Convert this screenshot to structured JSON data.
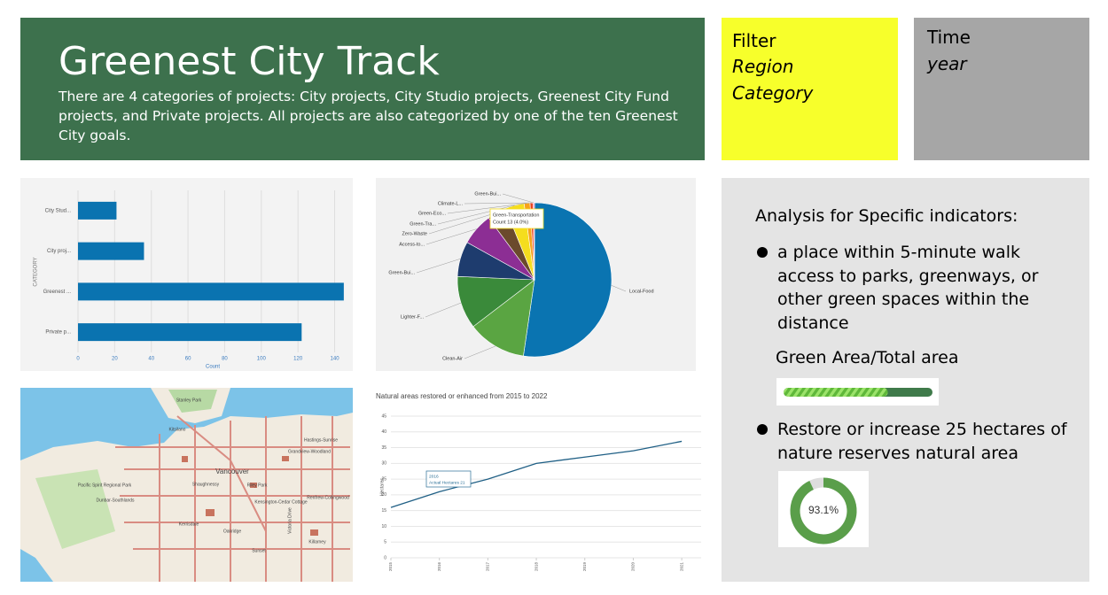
{
  "header": {
    "title": "Greenest City Track",
    "description": "There are 4 categories of projects: City projects, City Studio projects, Greenest City Fund projects, and Private projects.  All projects are also categorized by one of the ten Greenest City goals."
  },
  "filter": {
    "title": "Filter",
    "items": [
      "Region",
      "Category"
    ]
  },
  "time": {
    "title": "Time",
    "items": [
      "year"
    ]
  },
  "chart_data": [
    {
      "type": "bar",
      "orientation": "horizontal",
      "y_label": "CATEGORY",
      "x_label": "Count",
      "categories": [
        "City Stud...",
        "City proj...",
        "Greenest ...",
        "Private p..."
      ],
      "values": [
        21,
        36,
        145,
        122
      ],
      "color": "#0a73b0",
      "xlim": [
        0,
        147
      ],
      "xticks": [
        0,
        20,
        40,
        60,
        80,
        100,
        120,
        140
      ],
      "grid": true
    },
    {
      "type": "pie",
      "categories": [
        "Local-Food",
        "Clean-Air",
        "Lighter-F...",
        "Green-Bui...",
        "Access-to...",
        "Zero-Waste",
        "Green-Tra...",
        "Green-Eco...",
        "Climate-L...",
        "Green-Bui..."
      ],
      "values": [
        170,
        40,
        36,
        24,
        22,
        13,
        13,
        4,
        2,
        1
      ],
      "colors": [
        "#0a74b1",
        "#5aa542",
        "#3a8a3a",
        "#1e3c6e",
        "#8c2e94",
        "#6b4a2c",
        "#f5dd1e",
        "#f7a21b",
        "#e8461f",
        "#f279a5"
      ],
      "tooltip": {
        "title": "Green-Transportation",
        "text": "Count 13 (4.0%)"
      }
    },
    {
      "type": "line",
      "title": "Natural areas restored or enhanced from 2015 to 2022",
      "y_label": "Hectares",
      "x": [
        2015,
        2016,
        2017,
        2018,
        2019,
        2020,
        2021
      ],
      "values": [
        16,
        21,
        25,
        30,
        32,
        34,
        37
      ],
      "color": "#1f5f85",
      "xlim": [
        2015,
        2021.4
      ],
      "xticks": [
        2015,
        2016,
        2017,
        2018,
        2019,
        2020,
        2021
      ],
      "ylim": [
        0,
        45
      ],
      "yticks": [
        0,
        5,
        10,
        15,
        20,
        25,
        30,
        35,
        40,
        45
      ],
      "grid": true,
      "tooltip": {
        "title": "2016",
        "text": "Actual Hectares 21"
      }
    }
  ],
  "map": {
    "labels": [
      "Stanley Park",
      "Kitsilano",
      "Vancouver",
      "Pacific Spirit Regional Park",
      "Dunbar-Southlands",
      "Kerrisdale",
      "Oakridge",
      "Sunset",
      "Killarney",
      "Kensington-Cedar Cottage",
      "Renfrew-Collingwood",
      "Grandview-Woodland",
      "Hastings-Sunrise",
      "Shaughnessy",
      "Riley Park",
      "Victoria Drive"
    ]
  },
  "indicators": {
    "heading": "Analysis for Specific indicators:",
    "items": [
      {
        "text": "a place within 5-minute walk access to parks, greenways, or other green spaces within the distance",
        "metric": "Green Area/Total area",
        "progress": 70,
        "lim": [
          0,
          100
        ]
      },
      {
        "text": "Restore or increase 25 hectares of nature reserves natural area",
        "gauge": 93.1,
        "gauge_label": "93.1%",
        "lim": [
          0,
          100
        ]
      }
    ]
  }
}
